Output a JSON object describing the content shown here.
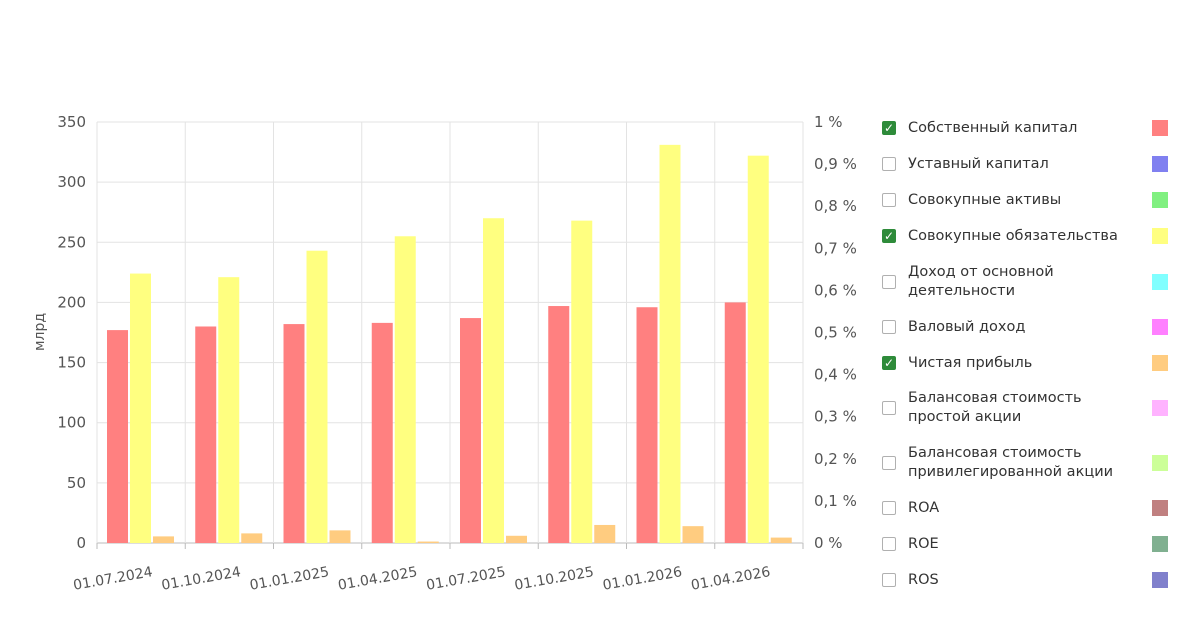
{
  "chart_data": {
    "type": "bar",
    "categories": [
      "01.07.2024",
      "01.10.2024",
      "01.01.2025",
      "01.04.2025",
      "01.07.2025",
      "01.10.2025",
      "01.01.2026",
      "01.04.2026"
    ],
    "series": [
      {
        "name": "Собственный капитал",
        "color": "#ff8080",
        "values": [
          177,
          180,
          182,
          183,
          187,
          197,
          196,
          200
        ]
      },
      {
        "name": "Совокупные обязательства",
        "color": "#ffff80",
        "values": [
          224,
          221,
          243,
          255,
          270,
          268,
          331,
          322
        ]
      },
      {
        "name": "Чистая прибыль",
        "color": "#ffcc80",
        "values": [
          5.5,
          8,
          10.5,
          1.2,
          6,
          15,
          14,
          4.5
        ]
      }
    ],
    "ylabel": "млрд",
    "ylim": [
      0,
      350
    ],
    "yticks": [
      "350",
      "300",
      "250",
      "200",
      "150",
      "100",
      "50",
      "0"
    ],
    "y2lim": [
      0,
      1
    ],
    "y2ticks": [
      "1 %",
      "0,9 %",
      "0,8 %",
      "0,7 %",
      "0,6 %",
      "0,5 %",
      "0,4 %",
      "0,3 %",
      "0,2 %",
      "0,1 %",
      "0 %"
    ],
    "grid": true,
    "legend_placement": "right"
  },
  "legend": {
    "items": [
      {
        "label": "Собственный капитал",
        "checked": true,
        "color": "#ff8080"
      },
      {
        "label": "Уставный капитал",
        "checked": false,
        "color": "#8080f0"
      },
      {
        "label": "Совокупные активы",
        "checked": false,
        "color": "#80f080"
      },
      {
        "label": "Совокупные обязательства",
        "checked": true,
        "color": "#ffff80"
      },
      {
        "label": "Доход от основной деятельности",
        "checked": false,
        "color": "#80ffff"
      },
      {
        "label": "Валовый доход",
        "checked": false,
        "color": "#ff80ff"
      },
      {
        "label": "Чистая прибыль",
        "checked": true,
        "color": "#ffcc80"
      },
      {
        "label": "Балансовая стоимость простой акции",
        "checked": false,
        "color": "#ffb3ff"
      },
      {
        "label": "Балансовая стоимость привилегированной акции",
        "checked": false,
        "color": "#ccff99"
      },
      {
        "label": "ROA",
        "checked": false,
        "color": "#c08080"
      },
      {
        "label": "ROE",
        "checked": false,
        "color": "#80b090"
      },
      {
        "label": "ROS",
        "checked": false,
        "color": "#8080cc"
      }
    ]
  }
}
